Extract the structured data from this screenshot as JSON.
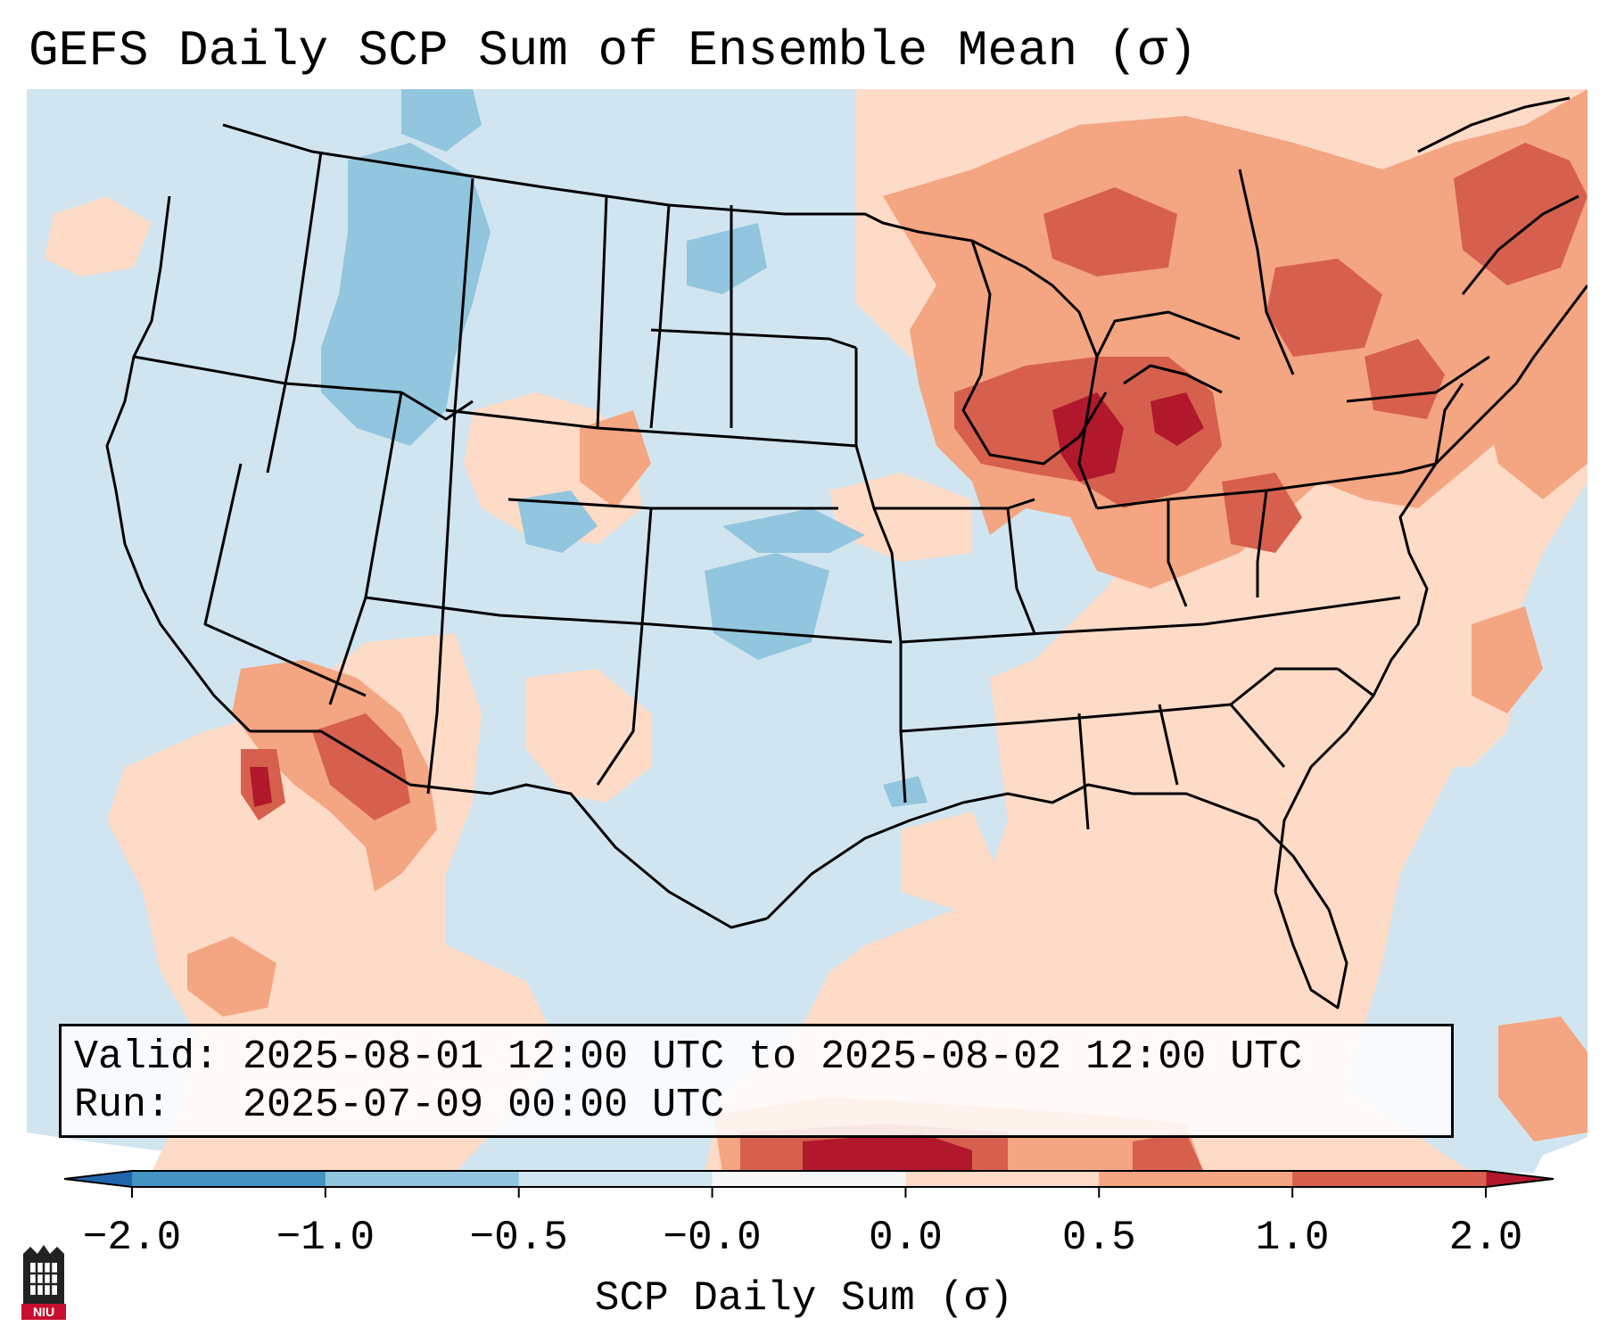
{
  "title": "GEFS Daily SCP Sum of Ensemble Mean (σ)",
  "info_box": {
    "valid_line": "Valid: 2025-08-01 12:00 UTC to 2025-08-02 12:00 UTC",
    "run_line": "Run:   2025-07-09 00:00 UTC"
  },
  "colorbar": {
    "label": "SCP Daily Sum (σ)",
    "ticks": [
      "−2.0",
      "−1.0",
      "−0.5",
      "−0.0",
      "0.0",
      "0.5",
      "1.0",
      "2.0"
    ],
    "colors": [
      "#4393c3",
      "#92c5de",
      "#d1e5f0",
      "#f7f7f7",
      "#fddbc7",
      "#f4a582",
      "#d6604d"
    ],
    "under_color": "#2166ac",
    "over_color": "#b2182b"
  },
  "logo": {
    "text": "NIU",
    "icon": "niu-tower-logo"
  },
  "icons": {
    "logo": "niu-tower-logo"
  }
}
